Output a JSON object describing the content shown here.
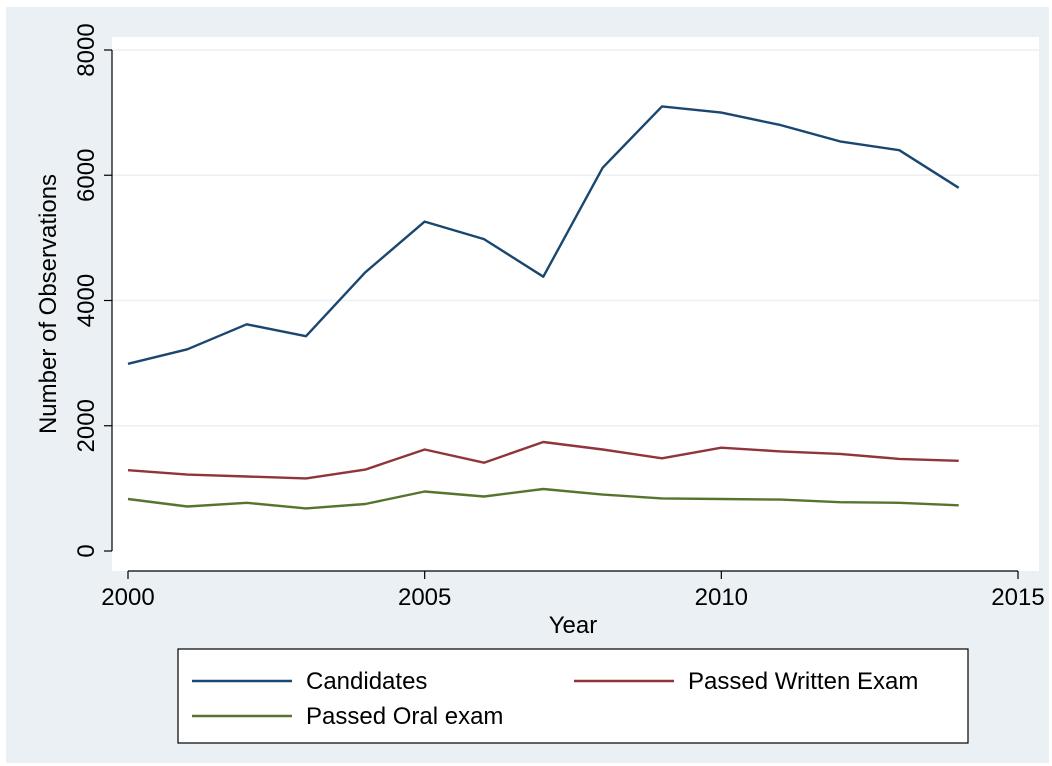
{
  "chart_data": {
    "type": "line",
    "title": "",
    "xlabel": "Year",
    "ylabel": "Number of Observations",
    "xlim": [
      2000,
      2015
    ],
    "ylim": [
      0,
      8000
    ],
    "x_ticks": [
      2000,
      2005,
      2010,
      2015
    ],
    "y_ticks": [
      0,
      2000,
      4000,
      6000,
      8000
    ],
    "grid": true,
    "legend_position": "bottom",
    "x": [
      2000,
      2001,
      2002,
      2003,
      2004,
      2005,
      2006,
      2007,
      2008,
      2009,
      2010,
      2011,
      2012,
      2013,
      2014
    ],
    "series": [
      {
        "name": "Candidates",
        "color": "#1a476f",
        "values": [
          2990,
          3220,
          3620,
          3430,
          4450,
          5260,
          4980,
          4380,
          6120,
          7100,
          7000,
          6800,
          6540,
          6400,
          5800
        ]
      },
      {
        "name": "Passed Written Exam",
        "color": "#90353b",
        "values": [
          1290,
          1220,
          1190,
          1160,
          1300,
          1620,
          1410,
          1740,
          1620,
          1480,
          1650,
          1590,
          1550,
          1470,
          1440
        ]
      },
      {
        "name": "Passed Oral exam",
        "color": "#55752f",
        "values": [
          830,
          710,
          770,
          680,
          750,
          950,
          870,
          990,
          900,
          840,
          830,
          820,
          780,
          770,
          730
        ]
      }
    ]
  }
}
